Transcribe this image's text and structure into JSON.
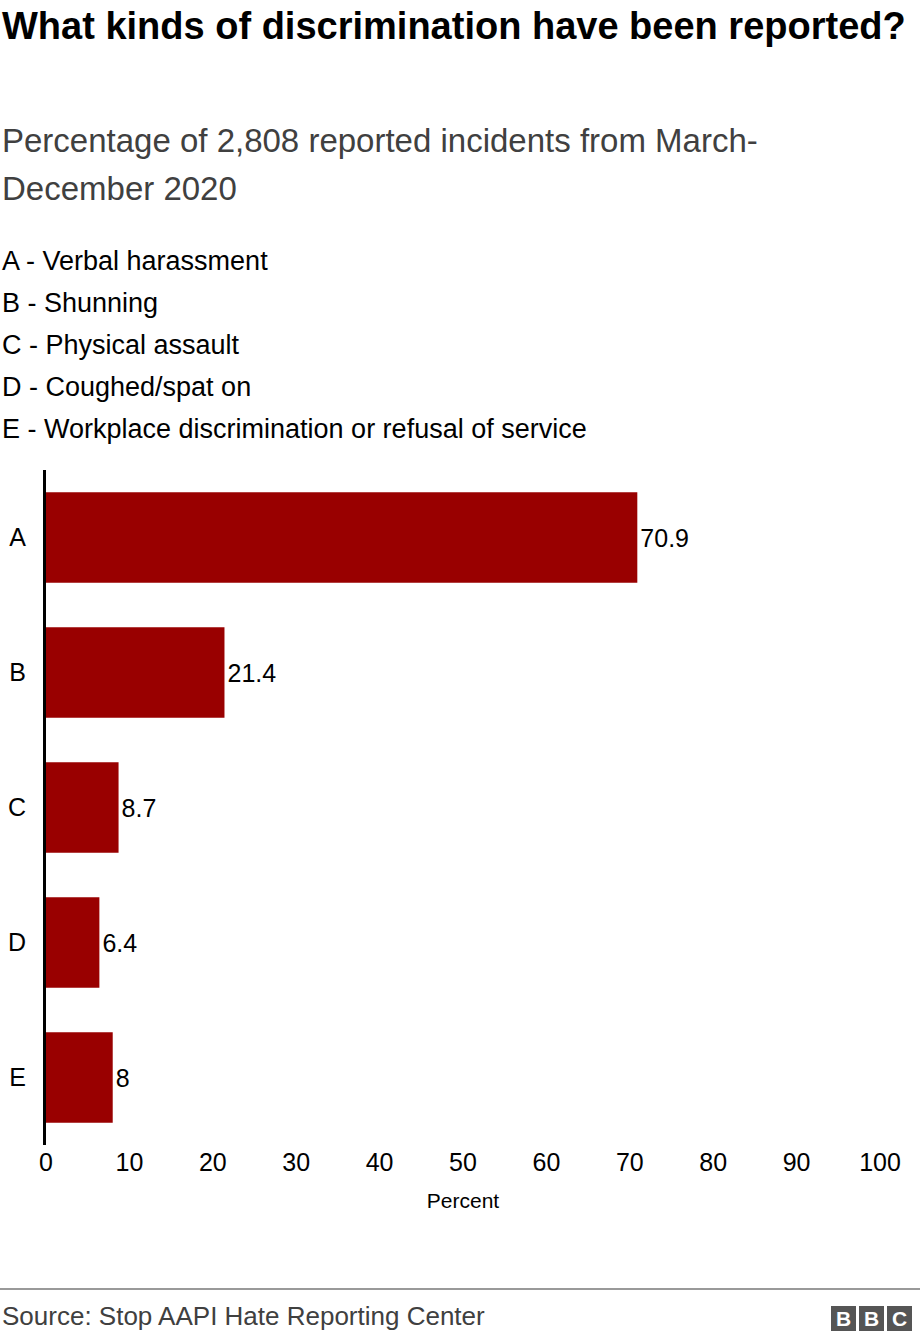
{
  "chart_data": {
    "type": "bar",
    "title": "What kinds of discrimination have been reported?",
    "subtitle": "Percentage of 2,808 reported incidents from March-December 2020",
    "key": [
      "A - Verbal harassment",
      "B - Shunning",
      "C - Physical assault",
      "D - Coughed/spat on",
      "E - Workplace discrimination or refusal of service"
    ],
    "categories": [
      "A",
      "B",
      "C",
      "D",
      "E"
    ],
    "values": [
      70.9,
      21.4,
      8.7,
      6.4,
      8
    ],
    "color": "#990000",
    "orientation": "horizontal",
    "data_labels": true,
    "grid": false,
    "xlim": [
      0,
      100
    ],
    "xticks": [
      0,
      10,
      20,
      30,
      40,
      50,
      60,
      70,
      80,
      90,
      100
    ],
    "xlabel": "Percent",
    "source": "Source: Stop AAPI Hate Reporting Center",
    "branding": "BBC"
  }
}
